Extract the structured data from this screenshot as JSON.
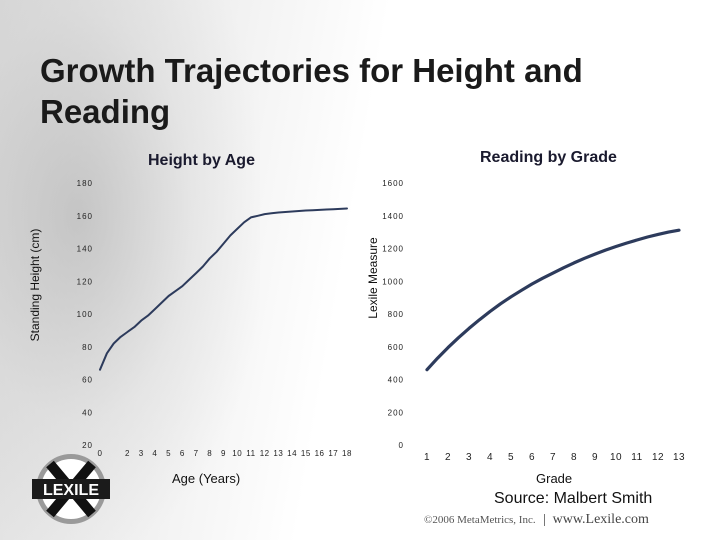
{
  "slide": {
    "title": "Growth Trajectories for Height and Reading",
    "source": "Source: Malbert Smith",
    "footer_copyright": "©2006 MetaMetrics, Inc.",
    "footer_site": "www.Lexile.com",
    "logo_text": "LEXILE"
  },
  "chart_data": [
    {
      "type": "line",
      "title": "Height by Age",
      "xlabel": "Age (Years)",
      "ylabel": "Standing Height (cm)",
      "xlim": [
        0,
        18
      ],
      "ylim": [
        20,
        180
      ],
      "xticks": [
        0,
        2,
        3,
        4,
        5,
        6,
        7,
        8,
        9,
        10,
        11,
        12,
        13,
        14,
        15,
        16,
        17,
        18
      ],
      "yticks": [
        20,
        40,
        60,
        80,
        100,
        120,
        140,
        160,
        180
      ],
      "grid": false,
      "line_color": "#2d3b5c",
      "series": [
        {
          "x": [
            0,
            0.5,
            1,
            1.5,
            2,
            2.5,
            3,
            3.5,
            4,
            4.5,
            5,
            5.5,
            6,
            6.5,
            7,
            7.5,
            8,
            8.5,
            9,
            9.5,
            10,
            10.5,
            11,
            11.5,
            12,
            12.5,
            13,
            13.5,
            14,
            14.5,
            15,
            15.5,
            16,
            16.5,
            17,
            17.5,
            18
          ],
          "y": [
            66,
            76,
            82,
            86,
            89,
            92,
            96,
            99,
            103,
            107,
            111,
            114,
            117,
            121,
            125,
            129,
            134,
            138,
            143,
            148,
            152,
            156,
            159,
            160,
            161,
            161.5,
            162,
            162.3,
            162.6,
            162.9,
            163.2,
            163.4,
            163.6,
            163.8,
            164,
            164.2,
            164.4
          ]
        }
      ]
    },
    {
      "type": "line",
      "title": "Reading by Grade",
      "xlabel": "Grade",
      "ylabel": "Lexile Measure",
      "xlim": [
        1,
        13
      ],
      "ylim": [
        0,
        1600
      ],
      "xticks": [
        1,
        2,
        3,
        4,
        5,
        6,
        7,
        8,
        9,
        10,
        11,
        12,
        13
      ],
      "yticks": [
        0,
        200,
        400,
        600,
        800,
        1000,
        1200,
        1400,
        1600
      ],
      "grid": false,
      "line_color": "#2d3b5c",
      "series": [
        {
          "x": [
            1,
            1.5,
            2,
            2.5,
            3,
            3.5,
            4,
            4.5,
            5,
            5.5,
            6,
            6.5,
            7,
            7.5,
            8,
            8.5,
            9,
            9.5,
            10,
            10.5,
            11,
            11.5,
            12,
            12.5,
            13
          ],
          "y": [
            460,
            530,
            595,
            655,
            712,
            765,
            815,
            862,
            905,
            945,
            983,
            1018,
            1050,
            1082,
            1112,
            1140,
            1166,
            1190,
            1212,
            1233,
            1252,
            1270,
            1286,
            1300,
            1312
          ]
        }
      ]
    }
  ]
}
